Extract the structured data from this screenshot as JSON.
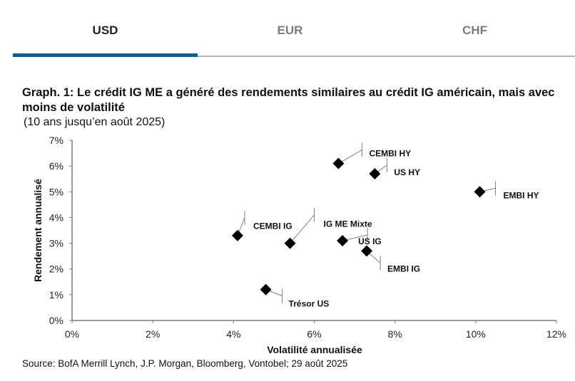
{
  "tabs": [
    {
      "label": "USD",
      "active": true
    },
    {
      "label": "EUR",
      "active": false
    },
    {
      "label": "CHF",
      "active": false
    }
  ],
  "colors": {
    "accent": "#006199",
    "marker": "#000000",
    "leader": "#808080"
  },
  "chart_data": {
    "type": "scatter",
    "title": "Graph. 1: Le crédit IG ME a généré des rendements similaires au crédit IG américain, mais avec moins de volatilité",
    "subtitle": "(10 ans jusqu’en août 2025)",
    "xlabel": "Volatilité annualisée",
    "ylabel": "Rendement annualisé",
    "xlim": [
      0,
      12
    ],
    "ylim": [
      0,
      7
    ],
    "xticks": [
      "0%",
      "2%",
      "4%",
      "6%",
      "8%",
      "10%",
      "12%"
    ],
    "yticks": [
      "0%",
      "1%",
      "2%",
      "3%",
      "4%",
      "5%",
      "6%",
      "7%"
    ],
    "grid": false,
    "points": [
      {
        "label": "CEMBI HY",
        "x": 6.6,
        "y": 6.1
      },
      {
        "label": "US HY",
        "x": 7.5,
        "y": 5.7
      },
      {
        "label": "EMBI HY",
        "x": 10.1,
        "y": 5.0
      },
      {
        "label": "CEMBI IG",
        "x": 4.1,
        "y": 3.3
      },
      {
        "label": "IG ME Mixte",
        "x": 5.4,
        "y": 3.0
      },
      {
        "label": "US IG",
        "x": 6.7,
        "y": 3.1
      },
      {
        "label": "EMBI IG",
        "x": 7.3,
        "y": 2.7
      },
      {
        "label": "Trésor US",
        "x": 4.8,
        "y": 1.2
      }
    ],
    "source": "Source: BofA Merrill Lynch, J.P. Morgan, Bloomberg, Vontobel; 29 août 2025"
  }
}
